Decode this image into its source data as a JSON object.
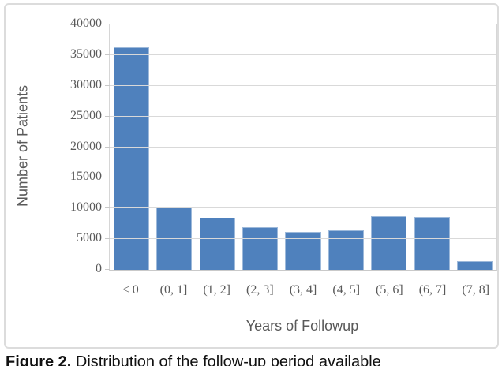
{
  "figure": {
    "caption_label": "Figure 2.",
    "caption_text": " Distribution of the follow-up period available"
  },
  "chart_data": {
    "type": "bar",
    "title": "",
    "categories": [
      "≤ 0",
      "(0, 1]",
      "(1, 2]",
      "(2, 3]",
      "(3, 4]",
      "(4, 5]",
      "(5, 6]",
      "(6, 7]",
      "(7, 8]"
    ],
    "values": [
      36300,
      10200,
      8500,
      7000,
      6200,
      6450,
      8800,
      8650,
      1400
    ],
    "xlabel": "Years of Followup",
    "ylabel": "Number of Patients",
    "ylim": [
      0,
      40000
    ],
    "yticks": [
      0,
      5000,
      10000,
      15000,
      20000,
      25000,
      30000,
      35000,
      40000
    ],
    "grid": true,
    "legend": false,
    "bar_color": "#4F81BD",
    "gridline_color": "#D9D9D9",
    "axis_text_color": "#595959"
  }
}
